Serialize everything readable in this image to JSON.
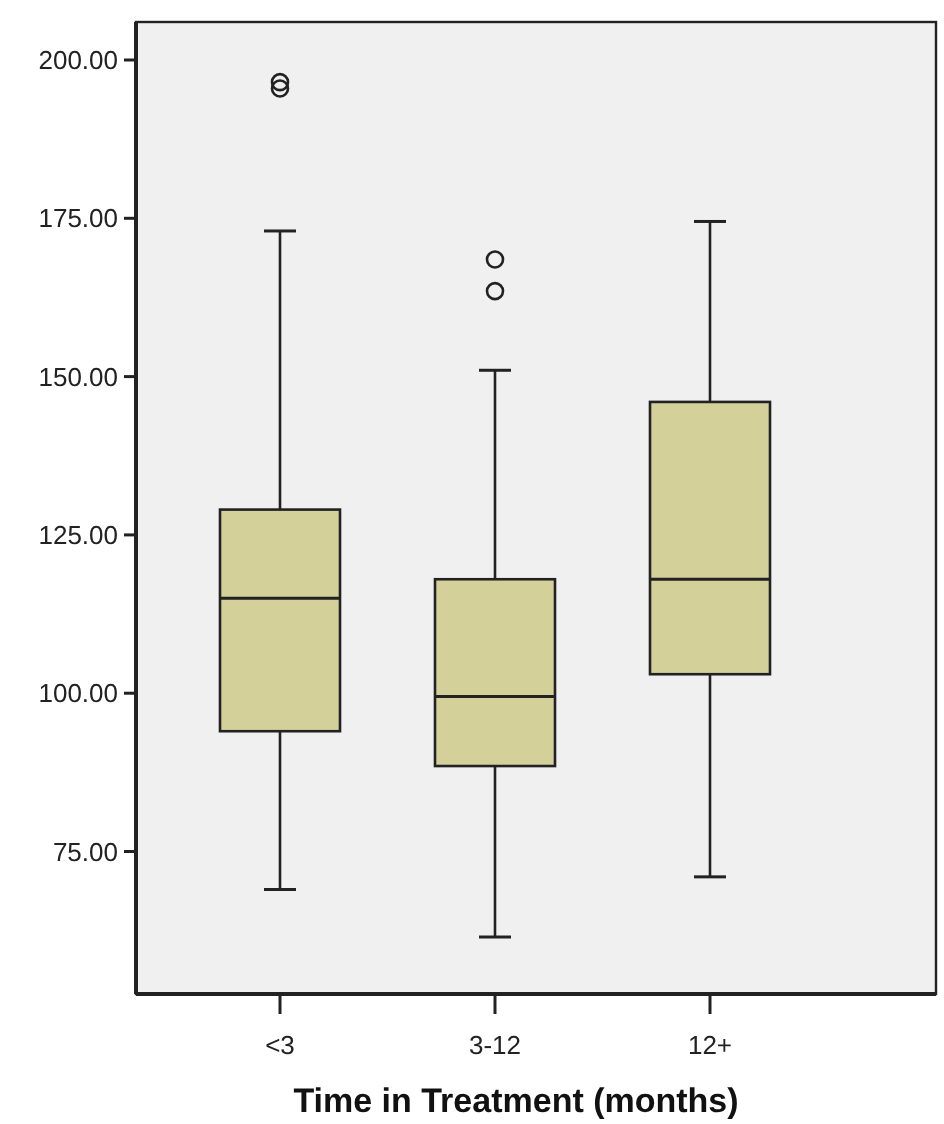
{
  "chart_data": {
    "type": "box",
    "xlabel": "Time in Treatment (months)",
    "categories": [
      "<3",
      "3-12",
      "12+"
    ],
    "series": [
      {
        "color": "#d3d09a",
        "boxes": [
          {
            "low": 69,
            "q1": 94,
            "median": 115,
            "q3": 129,
            "high": 173,
            "outliers": [
              196.5,
              195.5
            ]
          },
          {
            "low": 61.5,
            "q1": 88.5,
            "median": 99.5,
            "q3": 118,
            "high": 151,
            "outliers": [
              168.5,
              163.5
            ]
          },
          {
            "low": 71,
            "q1": 103,
            "median": 118,
            "q3": 146,
            "high": 174.5
          }
        ]
      }
    ],
    "ylim": [
      52.5,
      206
    ],
    "yticks": [
      {
        "value": 75,
        "label": "75.00"
      },
      {
        "value": 100,
        "label": "100.00"
      },
      {
        "value": 125,
        "label": "125.00"
      },
      {
        "value": 150,
        "label": "150.00"
      },
      {
        "value": 175,
        "label": "175.00"
      },
      {
        "value": 200,
        "label": "200.00"
      }
    ],
    "marker": "circle"
  }
}
